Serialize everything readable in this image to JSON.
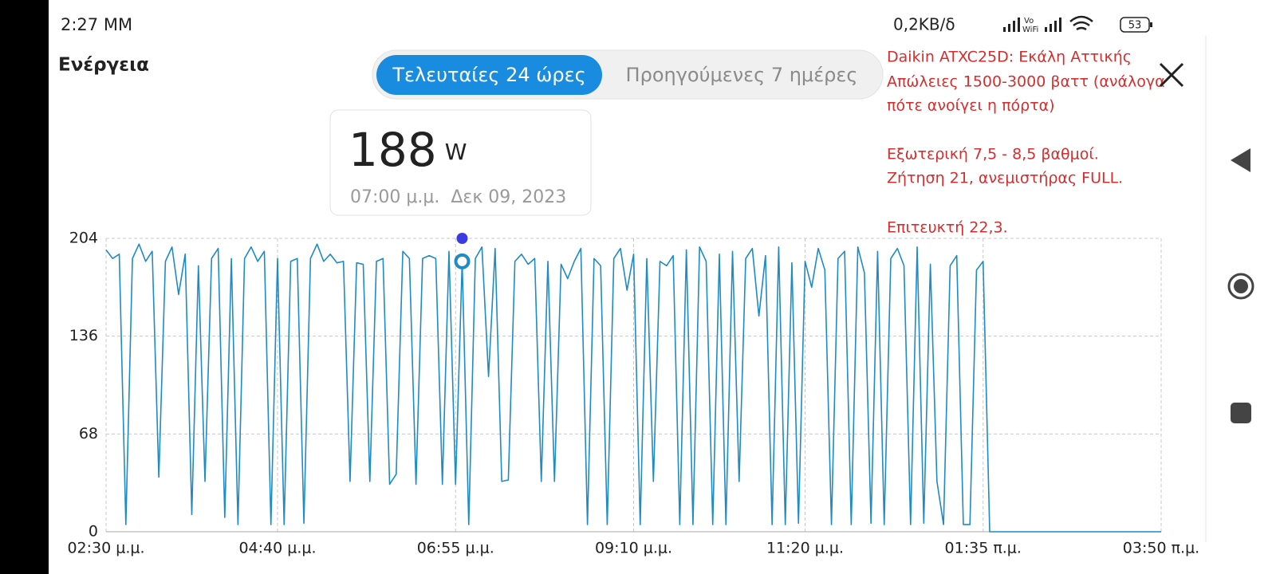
{
  "status_bar": {
    "time": "2:27 ΜΜ",
    "network": "0,2KB/δ",
    "battery": 53
  },
  "header": {
    "title": "Ενέργεια"
  },
  "tabs": [
    {
      "label": "Τελευταίες 24 ώρες",
      "active": true
    },
    {
      "label": "Προηγούμενες 7 ημέρες",
      "active": false
    }
  ],
  "note": [
    "Daikin ATXC25D: Εκάλη Αττικής",
    "Απώλειες 1500-3000 βαττ (ανάλογα",
    "πότε ανοίγει η πόρτα)",
    "Εξωτερική 7,5 - 8,5 βαθμοί.",
    "Ζήτηση 21, ανεμιστήρας FULL.",
    "Επιτευκτή 22,3."
  ],
  "tooltip": {
    "value": 188,
    "unit": "W",
    "time": "07:00 μ.μ.",
    "date": "Δεκ 09, 2023"
  },
  "chart_data": {
    "type": "line",
    "color": "#1e8bc3",
    "x": [
      0,
      5,
      10,
      15,
      20,
      25,
      30,
      35,
      40,
      45,
      50,
      55,
      60,
      65,
      70,
      75,
      80,
      85,
      90,
      95,
      100,
      105,
      110,
      115,
      120,
      125,
      130,
      135,
      140,
      145,
      150,
      155,
      160,
      165,
      170,
      175,
      180,
      185,
      190,
      195,
      200,
      205,
      210,
      215,
      220,
      225,
      230,
      235,
      240,
      245,
      250,
      255,
      260,
      265,
      270,
      275,
      280,
      285,
      290,
      295,
      300,
      305,
      310,
      315,
      320,
      325,
      330,
      335,
      340,
      345,
      350,
      355,
      360,
      365,
      370,
      375,
      380,
      385,
      390,
      395,
      400,
      405,
      410,
      415,
      420,
      425,
      430,
      435,
      440,
      445,
      450,
      455,
      460,
      465,
      470,
      475,
      480,
      485,
      490,
      495,
      500,
      505,
      510,
      515,
      520,
      525,
      530,
      535,
      540,
      545,
      550,
      555,
      560,
      565,
      570,
      575,
      580,
      585,
      590,
      595,
      600,
      605,
      610,
      615,
      620,
      625,
      630,
      635,
      640,
      645,
      650,
      655,
      660,
      665,
      670,
      800
    ],
    "values": [
      196,
      190,
      193,
      5,
      190,
      200,
      188,
      195,
      38,
      188,
      198,
      165,
      193,
      12,
      185,
      35,
      190,
      197,
      10,
      190,
      5,
      190,
      198,
      188,
      195,
      5,
      190,
      5,
      188,
      190,
      6,
      190,
      200,
      188,
      193,
      187,
      188,
      35,
      187,
      186,
      35,
      188,
      190,
      33,
      40,
      195,
      190,
      33,
      190,
      192,
      190,
      33,
      195,
      33,
      188,
      5,
      190,
      198,
      108,
      197,
      35,
      36,
      188,
      193,
      186,
      190,
      35,
      188,
      35,
      186,
      176,
      188,
      197,
      5,
      190,
      185,
      5,
      190,
      197,
      168,
      193,
      5,
      190,
      35,
      188,
      185,
      192,
      5,
      196,
      5,
      198,
      188,
      5,
      193,
      5,
      195,
      35,
      190,
      197,
      150,
      192,
      5,
      198,
      5,
      187,
      6,
      188,
      170,
      197,
      182,
      5,
      190,
      195,
      5,
      198,
      180,
      6,
      195,
      5,
      190,
      197,
      185,
      5,
      198,
      6,
      186,
      35,
      5,
      185,
      192,
      5,
      5,
      182,
      188,
      0,
      0
    ],
    "marker": {
      "x": 270,
      "value": 204,
      "color": "#3b3be6"
    },
    "xlim": [
      0,
      800
    ],
    "xticks": [
      {
        "value": 0,
        "label": "02:30 μ.μ."
      },
      {
        "value": 130,
        "label": "04:40 μ.μ."
      },
      {
        "value": 265,
        "label": "06:55 μ.μ."
      },
      {
        "value": 400,
        "label": "09:10 μ.μ."
      },
      {
        "value": 530,
        "label": "11:20 μ.μ."
      },
      {
        "value": 665,
        "label": "01:35 π.μ."
      },
      {
        "value": 800,
        "label": "03:50 π.μ."
      }
    ],
    "ylim": [
      0,
      204
    ],
    "yticks": [
      0,
      68,
      136,
      204
    ],
    "grid": true
  }
}
